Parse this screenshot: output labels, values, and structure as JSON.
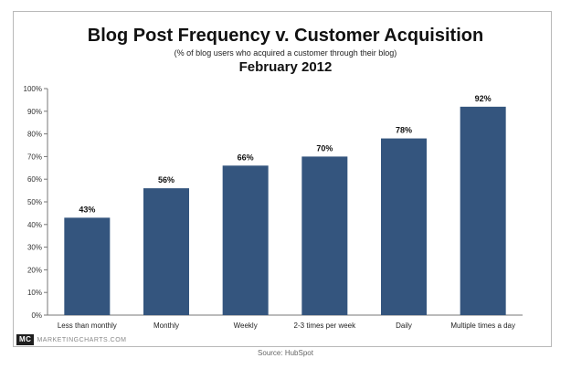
{
  "chart_data": {
    "type": "bar",
    "title": "Blog Post Frequency v. Customer Acquisition",
    "subtitle": "(% of blog users who acquired a customer through their blog)",
    "subtitle2": "February 2012",
    "categories": [
      "Less than monthly",
      "Monthly",
      "Weekly",
      "2-3 times per week",
      "Daily",
      "Multiple times a day"
    ],
    "values": [
      43,
      56,
      66,
      70,
      78,
      92
    ],
    "data_labels": [
      "43%",
      "56%",
      "66%",
      "70%",
      "78%",
      "92%"
    ],
    "ylim": [
      0,
      100
    ],
    "yticks": [
      0,
      10,
      20,
      30,
      40,
      50,
      60,
      70,
      80,
      90,
      100
    ],
    "ytick_labels": [
      "0%",
      "10%",
      "20%",
      "30%",
      "40%",
      "50%",
      "60%",
      "70%",
      "80%",
      "90%",
      "100%"
    ],
    "xlabel": "",
    "ylabel": "",
    "grid": false,
    "legend": "none",
    "bar_color": "#34557e"
  },
  "branding": {
    "logo": "MC",
    "name": "MARKETINGCHARTS.COM"
  },
  "source": "Source: HubSpot"
}
